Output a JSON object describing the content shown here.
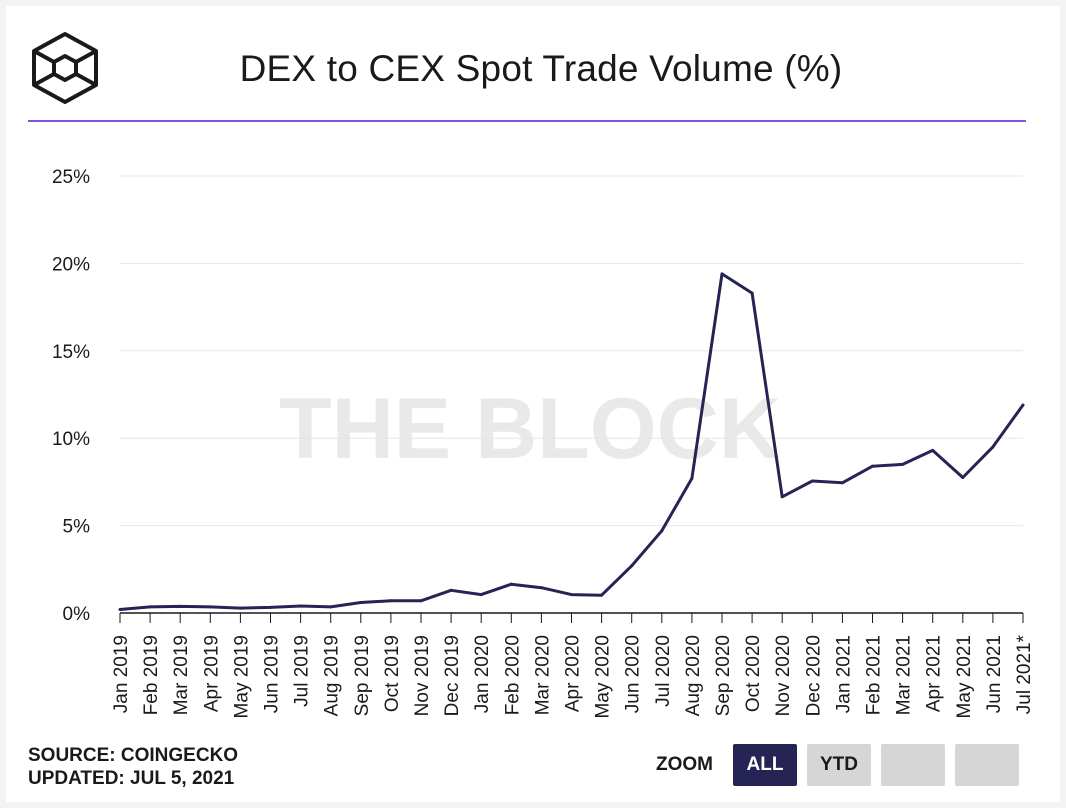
{
  "header": {
    "title": "DEX to CEX Spot Trade Volume (%)",
    "logo_icon": "the-block-cube-logo"
  },
  "watermark": "THE BLOCK",
  "footer": {
    "source": "SOURCE: COINGECKO",
    "updated": "UPDATED: JUL 5, 2021"
  },
  "zoom": {
    "label": "ZOOM",
    "buttons": [
      {
        "label": "ALL",
        "active": true
      },
      {
        "label": "YTD",
        "active": false
      },
      {
        "label": "",
        "active": false
      },
      {
        "label": "",
        "active": false
      }
    ]
  },
  "colors": {
    "line": "#262454",
    "accent_rule": "#8a4fd8",
    "grid": "#e6e6e6",
    "button_active": "#262454",
    "button_inactive": "#d6d6d6"
  },
  "chart_data": {
    "type": "line",
    "title": "DEX to CEX Spot Trade Volume (%)",
    "xlabel": "",
    "ylabel": "",
    "ylim": [
      0,
      25
    ],
    "y_ticks": [
      0,
      5,
      10,
      15,
      20,
      25
    ],
    "y_tick_labels": [
      "0%",
      "5%",
      "10%",
      "15%",
      "20%",
      "25%"
    ],
    "grid": true,
    "legend": "none",
    "categories": [
      "Jan 2019",
      "Feb 2019",
      "Mar 2019",
      "Apr 2019",
      "May 2019",
      "Jun 2019",
      "Jul 2019",
      "Aug 2019",
      "Sep 2019",
      "Oct 2019",
      "Nov 2019",
      "Dec 2019",
      "Jan 2020",
      "Feb 2020",
      "Mar 2020",
      "Apr 2020",
      "May 2020",
      "Jun 2020",
      "Jul 2020",
      "Aug 2020",
      "Sep 2020",
      "Oct 2020",
      "Nov 2020",
      "Dec 2020",
      "Jan 2021",
      "Feb 2021",
      "Mar 2021",
      "Apr 2021",
      "May 2021",
      "Jun 2021",
      "Jul 2021*"
    ],
    "series": [
      {
        "values": [
          0.2,
          0.35,
          0.38,
          0.35,
          0.28,
          0.32,
          0.4,
          0.35,
          0.6,
          0.7,
          0.7,
          1.3,
          1.05,
          1.65,
          1.45,
          1.05,
          1.02,
          2.7,
          4.7,
          7.7,
          19.4,
          18.3,
          6.65,
          7.55,
          7.45,
          8.4,
          8.5,
          9.3,
          7.75,
          9.5,
          11.9
        ]
      }
    ]
  }
}
